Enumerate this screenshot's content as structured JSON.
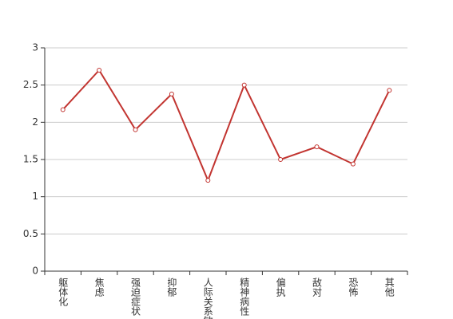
{
  "chart_data": {
    "type": "line",
    "categories": [
      "躯体化",
      "焦虑",
      "强迫症状",
      "抑郁",
      "人际关系敏感",
      "精神病性",
      "偏执",
      "敌对",
      "恐怖",
      "其他"
    ],
    "values": [
      2.17,
      2.7,
      1.9,
      2.38,
      1.22,
      2.5,
      1.5,
      1.67,
      1.44,
      2.43
    ],
    "color": "#c23531",
    "ylim": [
      0,
      3
    ],
    "yticks": [
      0,
      0.5,
      1,
      1.5,
      2,
      2.5,
      3
    ],
    "grid": true
  }
}
